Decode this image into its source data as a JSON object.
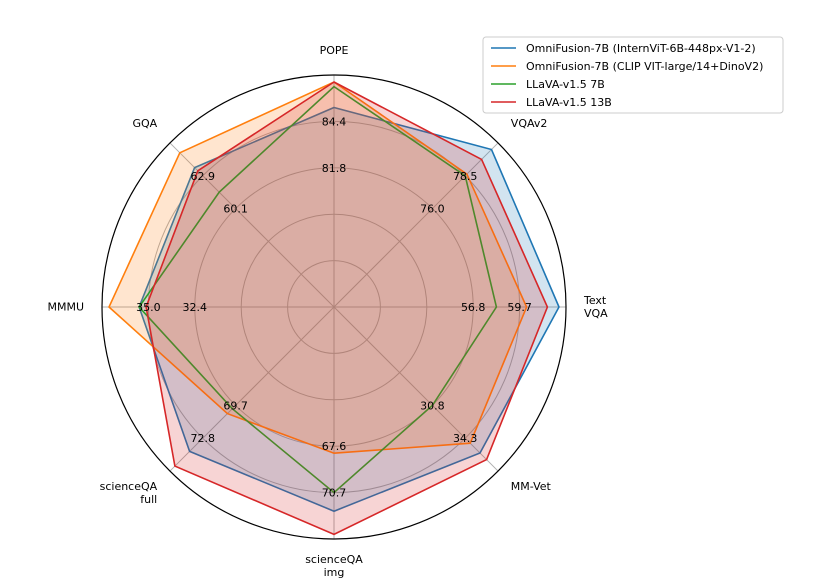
{
  "chart_data": {
    "type": "radar",
    "axes": [
      {
        "lines": [
          "POPE"
        ],
        "ticks": [
          "81.8",
          "84.4"
        ]
      },
      {
        "lines": [
          "VQAv2"
        ],
        "ticks": [
          "76.0",
          "78.5"
        ]
      },
      {
        "lines": [
          "Text",
          "VQA"
        ],
        "ticks": [
          "56.8",
          "59.7"
        ]
      },
      {
        "lines": [
          "MM-Vet"
        ],
        "ticks": [
          "30.8",
          "34.3"
        ]
      },
      {
        "lines": [
          "scienceQA",
          "img"
        ],
        "ticks": [
          "67.6",
          "70.7"
        ]
      },
      {
        "lines": [
          "scienceQA",
          "full"
        ],
        "ticks": [
          "69.7",
          "72.8"
        ]
      },
      {
        "lines": [
          "MMMU"
        ],
        "ticks": [
          "32.4",
          "35.0"
        ]
      },
      {
        "lines": [
          "GQA"
        ],
        "ticks": [
          "60.1",
          "62.9"
        ]
      }
    ],
    "series": [
      {
        "name": "OmniFusion-7B (InternViT-6B-448px-V1-2)",
        "color": "#1f77b4",
        "fill": true,
        "values": [
          0.86,
          0.96,
          0.97,
          0.89,
          0.88,
          0.88,
          0.84,
          0.85
        ]
      },
      {
        "name": "OmniFusion-7B (CLIP VIT-large/14+DinoV2)",
        "color": "#ff7f0e",
        "fill": true,
        "values": [
          0.97,
          0.81,
          0.83,
          0.83,
          0.63,
          0.65,
          0.97,
          0.94
        ]
      },
      {
        "name": "LLaVA-v1.5 7B",
        "color": "#2ca02c",
        "fill": false,
        "values": [
          0.95,
          0.8,
          0.7,
          0.6,
          0.8,
          0.62,
          0.84,
          0.7
        ]
      },
      {
        "name": "LLaVA-v1.5 13B",
        "color": "#d62728",
        "fill": true,
        "values": [
          0.97,
          0.9,
          0.92,
          0.93,
          0.98,
          0.97,
          0.81,
          0.83
        ]
      }
    ]
  }
}
